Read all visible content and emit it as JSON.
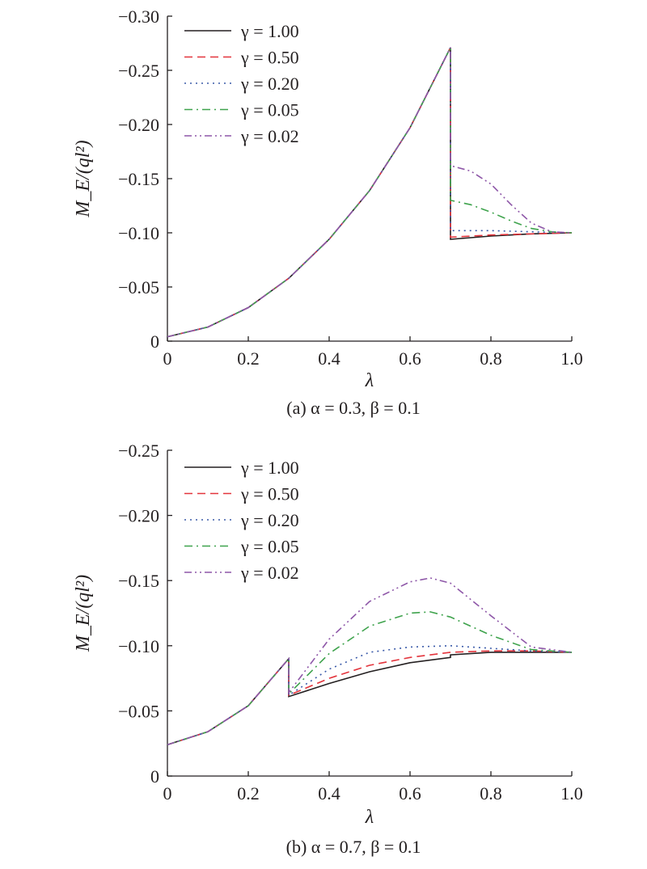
{
  "chart_data": [
    {
      "type": "line",
      "caption": "(a) α = 0.3, β = 0.1",
      "xlabel": "λ",
      "ylabel": "M_E/(ql²)",
      "xlim": [
        0,
        1.0
      ],
      "ylim": [
        0,
        -0.3
      ],
      "x_ticks": [
        "0",
        "0.2",
        "0.4",
        "0.6",
        "0.8",
        "1.0"
      ],
      "y_ticks": [
        "0",
        "−0.05",
        "−0.10",
        "−0.15",
        "−0.20",
        "−0.25",
        "−0.30"
      ],
      "legend_position": "top-left",
      "series": [
        {
          "name": "γ = 1.00",
          "color": "#231f20",
          "style": "solid",
          "x": [
            0,
            0.1,
            0.2,
            0.3,
            0.4,
            0.5,
            0.6,
            0.7,
            0.7,
            0.8,
            0.9,
            1.0
          ],
          "y": [
            -0.004,
            -0.013,
            -0.031,
            -0.058,
            -0.094,
            -0.139,
            -0.197,
            -0.271,
            -0.094,
            -0.097,
            -0.099,
            -0.1
          ]
        },
        {
          "name": "γ = 0.50",
          "color": "#e3343c",
          "style": "dash",
          "x": [
            0,
            0.1,
            0.2,
            0.3,
            0.4,
            0.5,
            0.6,
            0.7,
            0.7,
            0.8,
            0.9,
            1.0
          ],
          "y": [
            -0.004,
            -0.013,
            -0.031,
            -0.058,
            -0.094,
            -0.139,
            -0.197,
            -0.271,
            -0.096,
            -0.098,
            -0.099,
            -0.1
          ]
        },
        {
          "name": "γ = 0.20",
          "color": "#3a5aa9",
          "style": "dot",
          "x": [
            0,
            0.1,
            0.2,
            0.3,
            0.4,
            0.5,
            0.6,
            0.7,
            0.7,
            0.8,
            0.9,
            1.0
          ],
          "y": [
            -0.004,
            -0.013,
            -0.031,
            -0.058,
            -0.094,
            -0.139,
            -0.197,
            -0.271,
            -0.102,
            -0.102,
            -0.101,
            -0.1
          ]
        },
        {
          "name": "γ = 0.05",
          "color": "#3fa34d",
          "style": "dashdot",
          "x": [
            0,
            0.1,
            0.2,
            0.3,
            0.4,
            0.5,
            0.6,
            0.7,
            0.7,
            0.75,
            0.8,
            0.85,
            0.9,
            0.95,
            1.0
          ],
          "y": [
            -0.004,
            -0.013,
            -0.031,
            -0.058,
            -0.094,
            -0.139,
            -0.197,
            -0.271,
            -0.13,
            -0.126,
            -0.119,
            -0.111,
            -0.104,
            -0.101,
            -0.1
          ]
        },
        {
          "name": "γ = 0.02",
          "color": "#8e57a8",
          "style": "dashdotdot",
          "x": [
            0,
            0.1,
            0.2,
            0.3,
            0.4,
            0.5,
            0.6,
            0.7,
            0.7,
            0.75,
            0.8,
            0.85,
            0.9,
            0.95,
            1.0
          ],
          "y": [
            -0.004,
            -0.013,
            -0.031,
            -0.058,
            -0.094,
            -0.139,
            -0.197,
            -0.271,
            -0.162,
            -0.157,
            -0.145,
            -0.126,
            -0.109,
            -0.101,
            -0.1
          ]
        }
      ]
    },
    {
      "type": "line",
      "caption": "(b) α = 0.7, β = 0.1",
      "xlabel": "λ",
      "ylabel": "M_E/(ql²)",
      "xlim": [
        0,
        1.0
      ],
      "ylim": [
        0,
        -0.25
      ],
      "x_ticks": [
        "0",
        "0.2",
        "0.4",
        "0.6",
        "0.8",
        "1.0"
      ],
      "y_ticks": [
        "0",
        "−0.05",
        "−0.10",
        "−0.15",
        "−0.20",
        "−0.25"
      ],
      "legend_position": "top-left",
      "series": [
        {
          "name": "γ = 1.00",
          "color": "#231f20",
          "style": "solid",
          "x": [
            0,
            0.1,
            0.2,
            0.3,
            0.3,
            0.4,
            0.5,
            0.6,
            0.7,
            0.7,
            0.8,
            0.9,
            1.0
          ],
          "y": [
            -0.024,
            -0.034,
            -0.054,
            -0.09,
            -0.061,
            -0.071,
            -0.08,
            -0.087,
            -0.091,
            -0.093,
            -0.095,
            -0.095,
            -0.095
          ]
        },
        {
          "name": "γ = 0.50",
          "color": "#e3343c",
          "style": "dash",
          "x": [
            0,
            0.1,
            0.2,
            0.3,
            0.3,
            0.4,
            0.5,
            0.6,
            0.7,
            0.8,
            0.9,
            1.0
          ],
          "y": [
            -0.024,
            -0.034,
            -0.054,
            -0.09,
            -0.062,
            -0.075,
            -0.085,
            -0.091,
            -0.095,
            -0.096,
            -0.096,
            -0.095
          ]
        },
        {
          "name": "γ = 0.20",
          "color": "#3a5aa9",
          "style": "dot",
          "x": [
            0,
            0.1,
            0.2,
            0.3,
            0.3,
            0.4,
            0.5,
            0.6,
            0.7,
            0.8,
            0.9,
            1.0
          ],
          "y": [
            -0.024,
            -0.034,
            -0.054,
            -0.09,
            -0.062,
            -0.082,
            -0.095,
            -0.099,
            -0.1,
            -0.098,
            -0.096,
            -0.095
          ]
        },
        {
          "name": "γ = 0.05",
          "color": "#3fa34d",
          "style": "dashdot",
          "x": [
            0,
            0.1,
            0.2,
            0.3,
            0.3,
            0.4,
            0.5,
            0.6,
            0.65,
            0.7,
            0.8,
            0.9,
            1.0
          ],
          "y": [
            -0.024,
            -0.034,
            -0.054,
            -0.09,
            -0.063,
            -0.094,
            -0.115,
            -0.125,
            -0.126,
            -0.122,
            -0.108,
            -0.097,
            -0.095
          ]
        },
        {
          "name": "γ = 0.02",
          "color": "#8e57a8",
          "style": "dashdotdot",
          "x": [
            0,
            0.1,
            0.2,
            0.3,
            0.3,
            0.4,
            0.5,
            0.6,
            0.65,
            0.7,
            0.8,
            0.9,
            1.0
          ],
          "y": [
            -0.024,
            -0.034,
            -0.054,
            -0.09,
            -0.064,
            -0.105,
            -0.134,
            -0.149,
            -0.152,
            -0.148,
            -0.123,
            -0.099,
            -0.095
          ]
        }
      ]
    }
  ]
}
